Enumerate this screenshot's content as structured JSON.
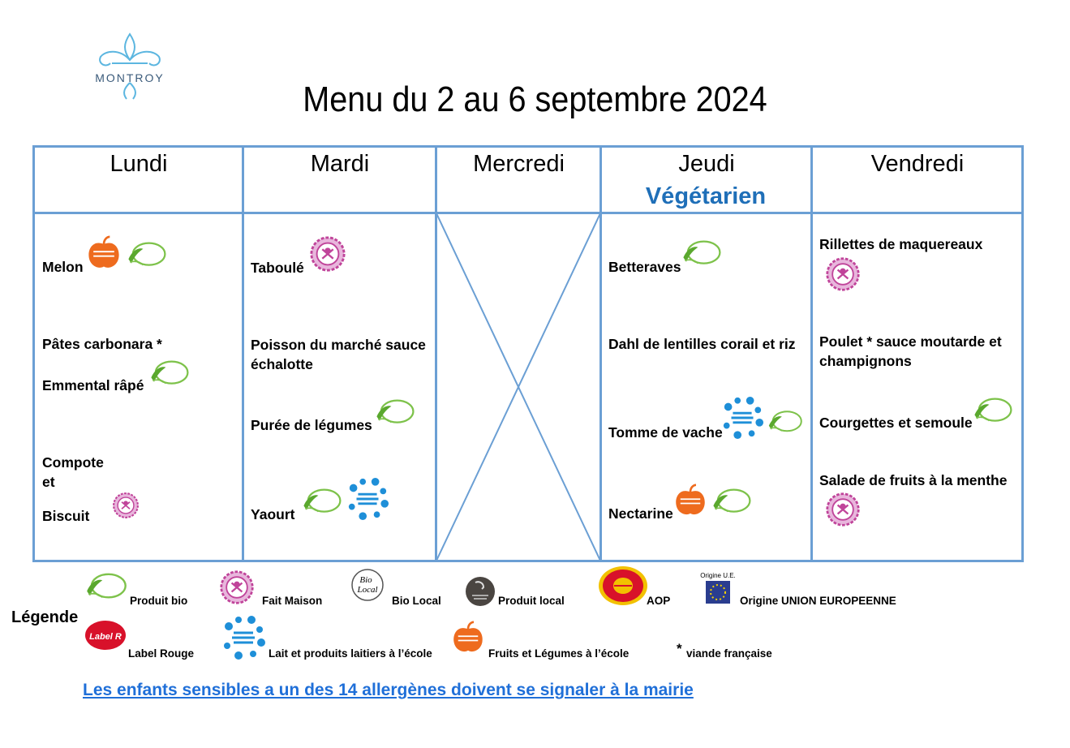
{
  "header": {
    "logo_text": "MONTROY",
    "title": "Menu du 2 au 6 septembre 2024"
  },
  "days": [
    {
      "name": "Lundi",
      "items": [
        "Melon",
        "Pâtes carbonara *",
        "Emmental râpé",
        "Compote",
        "et",
        "Biscuit"
      ]
    },
    {
      "name": "Mardi",
      "items": [
        "Taboulé",
        "Poisson du marché sauce",
        "échalotte",
        "Purée de légumes",
        "Yaourt"
      ]
    },
    {
      "name": "Mercredi",
      "items": []
    },
    {
      "name": "Jeudi",
      "subtitle": "Végétarien",
      "items": [
        "Betteraves",
        "Dahl de lentilles corail et riz",
        "Tomme de vache",
        "Nectarine"
      ]
    },
    {
      "name": "Vendredi",
      "items": [
        "Rillettes de maquereaux",
        "Poulet * sauce moutarde et",
        "champignons",
        "Courgettes et semoule",
        "Salade de fruits à la menthe"
      ]
    }
  ],
  "badges": {
    "bio": "BIO",
    "bio_local_1": "Bio",
    "bio_local_2": "Local",
    "origine_ue": "Origine U.E.",
    "fruits": "fruits",
    "lait": "lait",
    "label_rouge": "Label Rouge"
  },
  "legend": {
    "title": "Légende",
    "bio": "Produit bio",
    "fait_maison": "Fait Maison",
    "bio_local": "Bio Local",
    "produit_local": "Produit local",
    "aop": "AOP",
    "origine_ue": "Origine UNION EUROPEENNE",
    "label_rouge": "Label Rouge",
    "lait": "Lait et produits laitiers à l’école",
    "fruits": "Fruits et Légumes à l’école",
    "viande_star": "*",
    "viande": "viande française"
  },
  "footer": {
    "allergen_notice": "Les enfants sensibles a un des 14 allergènes doivent se signaler à la mairie"
  },
  "colors": {
    "grid": "#6b9fd4",
    "bio_green": "#5aa82e",
    "fait_maison_pink": "#c0449a",
    "lait_blue": "#1e8fd8",
    "fruits_orange": "#ee6b1e",
    "vegetarien_blue": "#1f6fb8",
    "link_blue": "#1f6fd8"
  },
  "icons": [
    "montroy-logo",
    "bio-icon",
    "fait-maison-icon",
    "lait-icon",
    "fruits-icon",
    "bio-local-icon",
    "produit-local-icon",
    "aop-icon",
    "origine-ue-icon",
    "label-rouge-icon"
  ]
}
